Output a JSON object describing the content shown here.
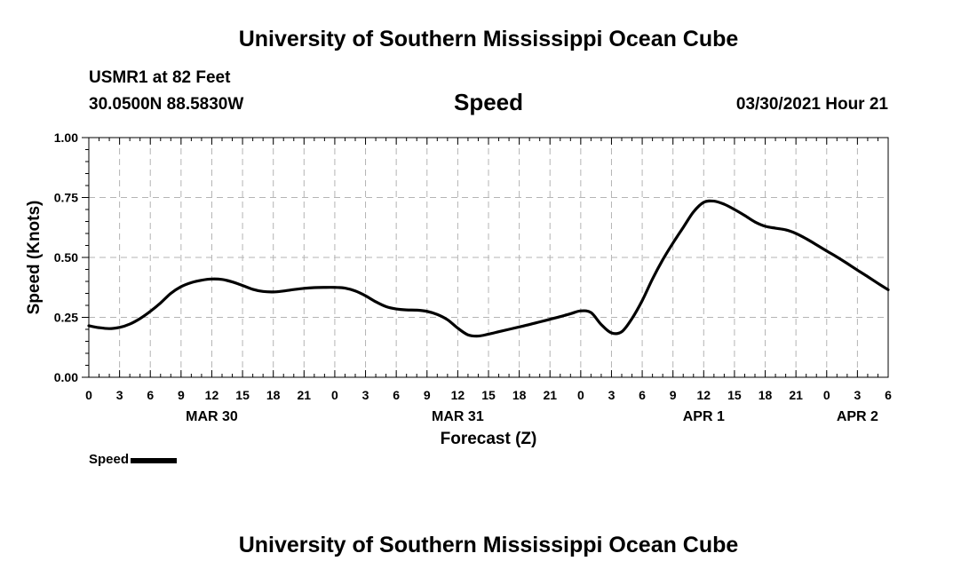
{
  "header": {
    "title_top": "University of Southern Mississippi Ocean Cube",
    "station": "USMR1 at 82 Feet",
    "coords": "30.0500N  88.5830W",
    "chart_title": "Speed",
    "datetime": "03/30/2021 Hour 21"
  },
  "footer": {
    "title_bottom": "University of Southern Mississippi Ocean Cube"
  },
  "legend": {
    "label": "Speed"
  },
  "colors": {
    "line": "#000000",
    "grid": "#b4b4b4",
    "background": "#ffffff"
  },
  "chart_data": {
    "type": "line",
    "title": "Speed",
    "xlabel": "Forecast (Z)",
    "ylabel": "Speed (Knots)",
    "xlim": [
      0,
      78
    ],
    "ylim": [
      0,
      1.0
    ],
    "x_ticks": [
      0,
      3,
      6,
      9,
      12,
      15,
      18,
      21,
      24,
      27,
      30,
      33,
      36,
      39,
      42,
      45,
      48,
      51,
      54,
      57,
      60,
      63,
      66,
      69,
      72,
      75,
      78
    ],
    "x_tick_labels": [
      "0",
      "3",
      "6",
      "9",
      "12",
      "15",
      "18",
      "21",
      "0",
      "3",
      "6",
      "9",
      "12",
      "15",
      "18",
      "21",
      "0",
      "3",
      "6",
      "9",
      "12",
      "15",
      "18",
      "21",
      "0",
      "3",
      "6"
    ],
    "y_ticks": [
      0,
      0.25,
      0.5,
      0.75,
      1.0
    ],
    "y_tick_labels": [
      "0.00",
      "0.25",
      "0.50",
      "0.75",
      "1.00"
    ],
    "date_labels": [
      {
        "label": "MAR 30",
        "x": 12
      },
      {
        "label": "MAR 31",
        "x": 36
      },
      {
        "label": "APR 1",
        "x": 60
      },
      {
        "label": "APR 2",
        "x": 75
      }
    ],
    "grid": true,
    "series": [
      {
        "name": "Speed",
        "x": [
          0,
          1,
          2,
          3,
          4,
          5,
          6,
          7,
          8,
          9,
          10,
          11,
          12,
          13,
          14,
          15,
          16,
          17,
          18,
          19,
          20,
          21,
          22,
          23,
          24,
          25,
          26,
          27,
          28,
          29,
          30,
          31,
          32,
          33,
          34,
          35,
          36,
          37,
          38,
          39,
          40,
          41,
          42,
          43,
          44,
          45,
          46,
          47,
          48,
          49,
          50,
          51,
          52,
          53,
          54,
          55,
          56,
          57,
          58,
          59,
          60,
          61,
          62,
          63,
          64,
          65,
          66,
          67,
          68,
          69,
          70,
          71,
          72,
          73,
          74,
          75,
          76,
          77,
          78
        ],
        "values": [
          0.215,
          0.207,
          0.203,
          0.208,
          0.222,
          0.245,
          0.275,
          0.31,
          0.35,
          0.378,
          0.395,
          0.405,
          0.41,
          0.408,
          0.398,
          0.383,
          0.367,
          0.358,
          0.356,
          0.36,
          0.366,
          0.371,
          0.374,
          0.375,
          0.375,
          0.372,
          0.36,
          0.34,
          0.315,
          0.295,
          0.285,
          0.281,
          0.28,
          0.275,
          0.262,
          0.24,
          0.205,
          0.177,
          0.172,
          0.18,
          0.19,
          0.2,
          0.21,
          0.22,
          0.231,
          0.242,
          0.253,
          0.265,
          0.277,
          0.27,
          0.22,
          0.185,
          0.19,
          0.245,
          0.32,
          0.41,
          0.49,
          0.56,
          0.625,
          0.69,
          0.73,
          0.735,
          0.722,
          0.7,
          0.675,
          0.648,
          0.63,
          0.622,
          0.615,
          0.6,
          0.578,
          0.553,
          0.527,
          0.502,
          0.475,
          0.447,
          0.42,
          0.392,
          0.365
        ]
      }
    ]
  }
}
